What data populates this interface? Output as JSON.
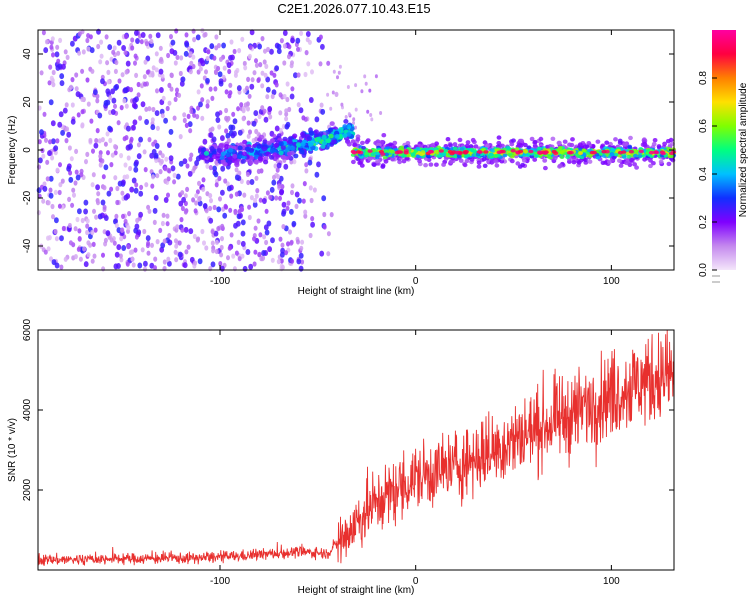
{
  "figure": {
    "title": "C2E1.2026.077.10.43.E15"
  },
  "chart_data": [
    {
      "id": "spectrogram",
      "type": "heatmap",
      "xlabel": "Height of straight line (km)",
      "ylabel": "Frequency (Hz)",
      "xlim": [
        -193,
        132
      ],
      "ylim": [
        -50,
        50
      ],
      "xticks": [
        -100,
        0,
        100
      ],
      "xtick_labels": [
        "-100",
        "0",
        "100"
      ],
      "yticks": [
        -40,
        -20,
        0,
        20,
        40
      ],
      "ytick_labels": [
        "-40",
        "-20",
        "0",
        "20",
        "40"
      ],
      "grid": false,
      "colorbar": {
        "label": "Normalized spectral amplitude",
        "range": [
          0,
          1
        ],
        "ticks": [
          0,
          0.2,
          0.4,
          0.6,
          0.8
        ],
        "tick_labels": [
          "0.0",
          "0.2",
          "0.4",
          "0.6",
          "0.8"
        ],
        "colors": [
          "#f4e6fa",
          "#c488ee",
          "#7f00ff",
          "#1030ff",
          "#00c0ff",
          "#00ff80",
          "#80ff00",
          "#ffe000",
          "#ff8000",
          "#ff0040",
          "#ff00a0"
        ]
      },
      "regions": [
        {
          "name": "broadband noise",
          "x_from": -193,
          "x_to": -47,
          "freq_from": -50,
          "freq_to": 50,
          "amplitude": 0.1
        },
        {
          "name": "emerging signal",
          "x_from": -110,
          "x_to": -32,
          "center_freq_start": -2,
          "center_freq_end": 8,
          "amplitude": 0.4
        },
        {
          "name": "stable line",
          "x_from": -32,
          "x_to": 132,
          "center_freq": -1,
          "amplitude": 0.7
        }
      ]
    },
    {
      "id": "snr",
      "type": "line",
      "xlabel": "Height of straight line (km)",
      "ylabel": "SNR (10 * v/v)",
      "xlim": [
        -193,
        132
      ],
      "ylim": [
        0,
        6000
      ],
      "xticks": [
        -100,
        0,
        100
      ],
      "xtick_labels": [
        "-100",
        "0",
        "100"
      ],
      "yticks": [
        2000,
        4000,
        6000
      ],
      "ytick_labels": [
        "2000",
        "4000",
        "6000"
      ],
      "grid": false,
      "series": [
        {
          "name": "SNR",
          "color": "#e8302e",
          "x": [
            -190,
            -150,
            -110,
            -90,
            -60,
            -45,
            -35,
            -25,
            -10,
            0,
            20,
            40,
            60,
            80,
            100,
            115,
            130
          ],
          "y": [
            250,
            280,
            300,
            350,
            450,
            420,
            900,
            1500,
            2000,
            2300,
            2600,
            3000,
            3500,
            3900,
            4400,
            4700,
            4900
          ]
        }
      ]
    }
  ]
}
